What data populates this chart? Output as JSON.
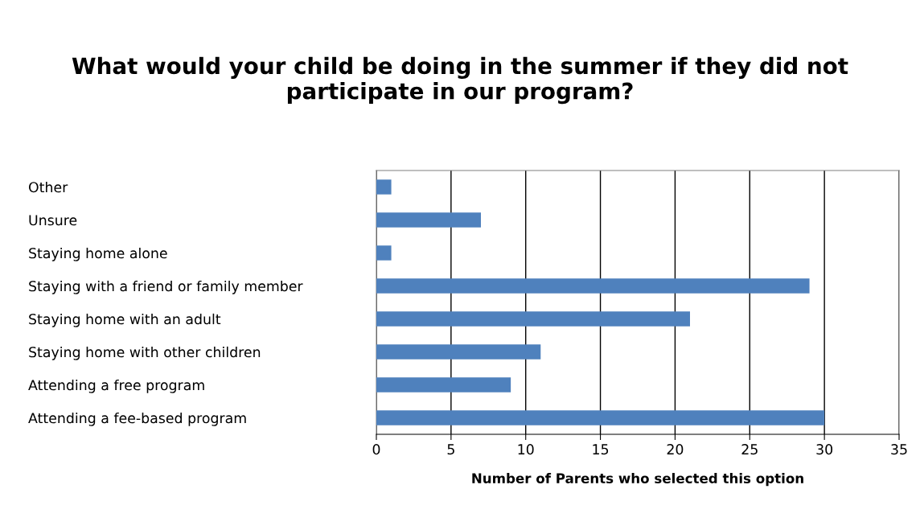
{
  "chart_data": {
    "type": "bar",
    "orientation": "horizontal",
    "title": "What would your child be doing in the summer if they did not participate in our program?",
    "xlabel": "Number of Parents who selected this option",
    "categories": [
      "Other",
      "Unsure",
      "Staying home alone",
      "Staying with a friend or family member",
      "Staying home with an adult",
      "Staying home with other children",
      "Attending a free program",
      "Attending a fee-based program"
    ],
    "values": [
      1,
      7,
      1,
      29,
      21,
      11,
      9,
      30
    ],
    "color": "#4f81bd",
    "xlim": [
      0,
      35
    ],
    "xticks": [
      0,
      5,
      10,
      15,
      20,
      25,
      30,
      35
    ],
    "grid": "x",
    "legend": false
  }
}
